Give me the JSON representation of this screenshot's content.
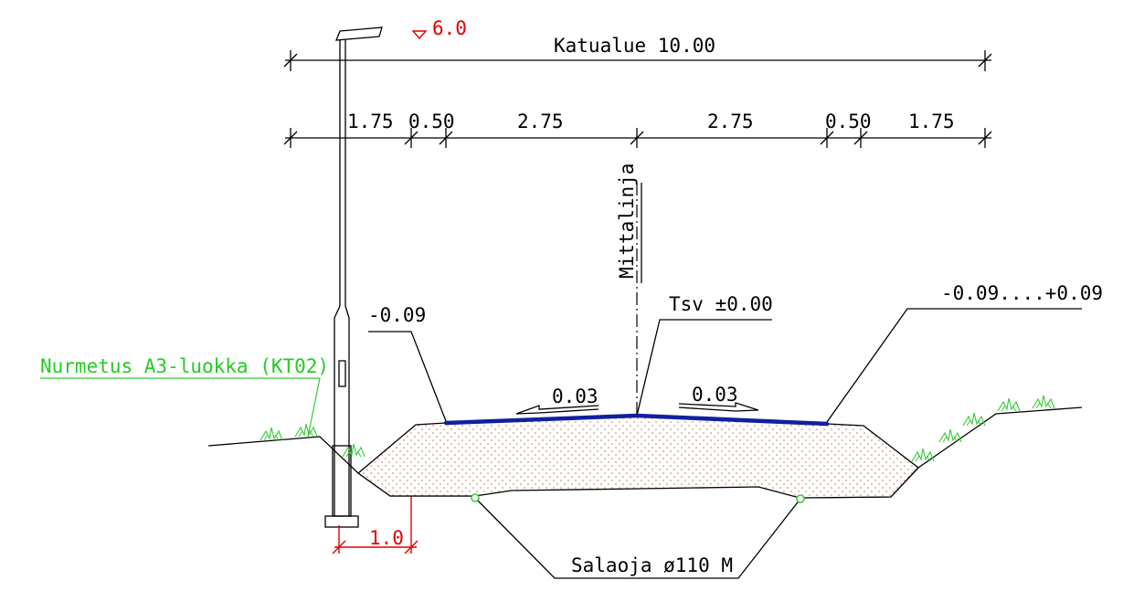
{
  "diagram": {
    "type": "street cross-section",
    "colors": {
      "linework": "#000000",
      "paving": "#1020a0",
      "annotation_red": "#e10000",
      "vegetation_green": "#22cc22",
      "fill_sand": "#c87850"
    },
    "labels": {
      "lamp_height": "6.0",
      "total_width": "Katualue 10.00",
      "dim_1": "1.75",
      "dim_2": "0.50",
      "dim_3": "2.75",
      "dim_4": "2.75",
      "dim_5": "0.50",
      "dim_6": "1.75",
      "centerline": "Mittalinja",
      "left_level": "-0.09",
      "crown_level": "Tsv ±0.00",
      "right_level": "-0.09....+0.09",
      "left_slope": "0.03",
      "right_slope": "0.03",
      "turfing": "Nurmetus A3-luokka (KT02)",
      "lamp_offset": "1.0",
      "drain": "Salaoja ø110 M"
    }
  }
}
